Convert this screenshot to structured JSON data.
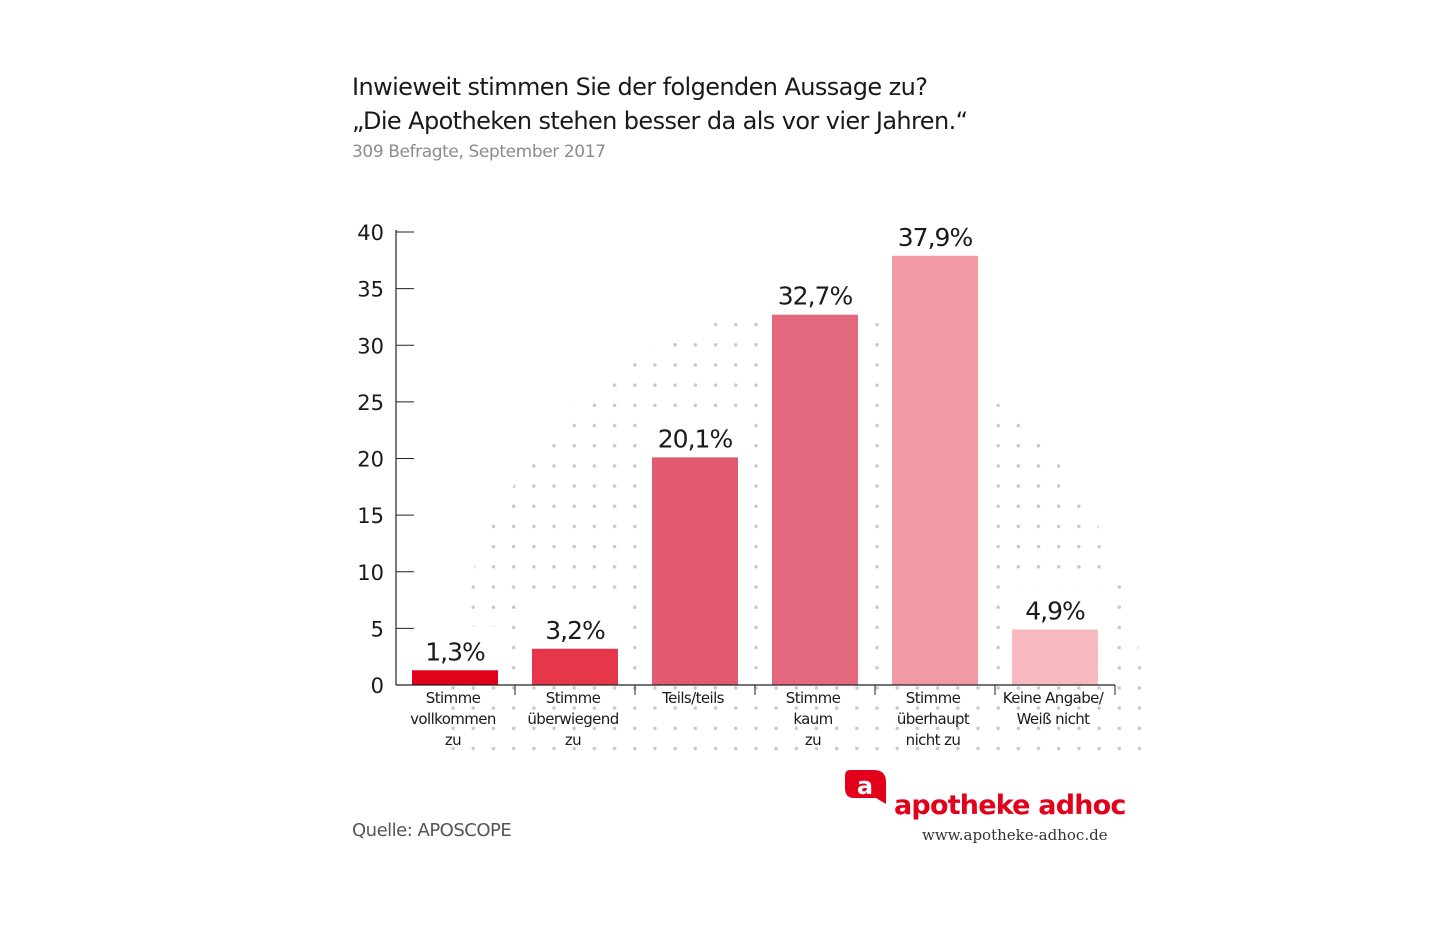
{
  "header": {
    "title_line1": "Inwieweit stimmen Sie der folgenden Aussage zu?",
    "title_line2": "„Die Apotheken stehen besser da als vor vier Jahren.“",
    "subtitle": "309 Befragte, September 2017"
  },
  "footer": {
    "source": "Quelle: APOSCOPE",
    "brand": "apotheke adhoc",
    "url": "www.apotheke-adhoc.de",
    "brand_color": "#e2001a"
  },
  "chart_data": {
    "type": "bar",
    "title": "Inwieweit stimmen Sie der folgenden Aussage zu? „Die Apotheken stehen besser da als vor vier Jahren.“",
    "xlabel": "",
    "ylabel": "",
    "ylim": [
      0,
      40
    ],
    "yticks": [
      "0",
      "5",
      "10",
      "15",
      "20",
      "25",
      "30",
      "35",
      "40"
    ],
    "categories": [
      [
        "Stimme",
        "vollkommen",
        "zu"
      ],
      [
        "Stimme",
        "überwiegend",
        "zu"
      ],
      [
        "Teils/teils"
      ],
      [
        "Stimme",
        "kaum",
        "zu"
      ],
      [
        "Stimme",
        "überhaupt",
        "nicht zu"
      ],
      [
        "Keine Angabe/",
        "Weiß nicht"
      ]
    ],
    "values": [
      1.3,
      3.2,
      20.1,
      32.7,
      37.9,
      4.9
    ],
    "labels": [
      "1,3%",
      "3,2%",
      "20,1%",
      "32,7%",
      "37,9%",
      "4,9%"
    ],
    "colors": [
      "#e2001a",
      "#e6364a",
      "#e25a71",
      "#e4687d",
      "#f29aa3",
      "#f7b8bf"
    ],
    "grid": false,
    "legend": "none"
  }
}
